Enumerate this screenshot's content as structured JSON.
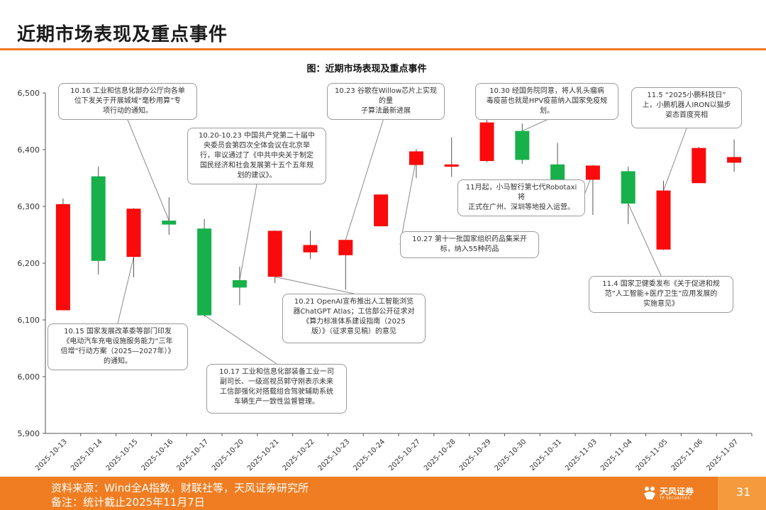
{
  "header": {
    "title": "近期市场表现及重点事件"
  },
  "footer": {
    "source": "资料来源：Wind全A指数，财联社等，天风证券研究所",
    "note": "备注：统计截止2025年11月7日",
    "brand_name": "天风证券",
    "brand_sub": "TF SECURITIES",
    "page_number": "31"
  },
  "colors": {
    "up": "#fa0a0a",
    "down": "#18b04a",
    "accent": "#ee7a22"
  },
  "chart_data": {
    "type": "candlestick",
    "title": "图：近期市场表现及重点事件",
    "xlabel": "",
    "ylabel": "",
    "ylim": [
      5900,
      6500
    ],
    "yticks": [
      5900,
      6000,
      6100,
      6200,
      6300,
      6400,
      6500
    ],
    "ytick_labels": [
      "5,900",
      "6,000",
      "6,100",
      "6,200",
      "6,300",
      "6,400",
      "6,500"
    ],
    "grid": false,
    "categories": [
      "2025-10-13",
      "2025-10-14",
      "2025-10-15",
      "2025-10-16",
      "2025-10-17",
      "2025-10-20",
      "2025-10-21",
      "2025-10-22",
      "2025-10-23",
      "2025-10-24",
      "2025-10-27",
      "2025-10-28",
      "2025-10-29",
      "2025-10-30",
      "2025-10-31",
      "2025-11-03",
      "2025-11-04",
      "2025-11-05",
      "2025-11-06",
      "2025-11-07"
    ],
    "candles": [
      {
        "open": 6117,
        "close": 6304,
        "high": 6314,
        "low": 6117
      },
      {
        "open": 6353,
        "close": 6204,
        "high": 6370,
        "low": 6180
      },
      {
        "open": 6211,
        "close": 6296,
        "high": 6297,
        "low": 6175
      },
      {
        "open": 6275,
        "close": 6268,
        "high": 6316,
        "low": 6250
      },
      {
        "open": 6261,
        "close": 6108,
        "high": 6278,
        "low": 6106
      },
      {
        "open": 6170,
        "close": 6157,
        "high": 6194,
        "low": 6126
      },
      {
        "open": 6176,
        "close": 6257,
        "high": 6258,
        "low": 6165
      },
      {
        "open": 6219,
        "close": 6232,
        "high": 6257,
        "low": 6207
      },
      {
        "open": 6214,
        "close": 6241,
        "high": 6241,
        "low": 6153
      },
      {
        "open": 6265,
        "close": 6321,
        "high": 6321,
        "low": 6265
      },
      {
        "open": 6373,
        "close": 6397,
        "high": 6401,
        "low": 6350
      },
      {
        "open": 6370,
        "close": 6374,
        "high": 6422,
        "low": 6352
      },
      {
        "open": 6380,
        "close": 6448,
        "high": 6462,
        "low": 6378
      },
      {
        "open": 6433,
        "close": 6382,
        "high": 6446,
        "low": 6375
      },
      {
        "open": 6374,
        "close": 6347,
        "high": 6412,
        "low": 6345
      },
      {
        "open": 6347,
        "close": 6372,
        "high": 6373,
        "low": 6285
      },
      {
        "open": 6362,
        "close": 6305,
        "high": 6370,
        "low": 6269
      },
      {
        "open": 6224,
        "close": 6328,
        "high": 6345,
        "low": 6223
      },
      {
        "open": 6341,
        "close": 6403,
        "high": 6405,
        "low": 6341
      },
      {
        "open": 6377,
        "close": 6387,
        "high": 6418,
        "low": 6361
      }
    ],
    "annotations": [
      {
        "date": "2025-10-16",
        "text": "10.16 工业和信息化部办公厅向各单\n位下发关于开展城域“毫秒用算”专\n项行动的通知。"
      },
      {
        "date": "2025-10-20",
        "text": "10.20-10.23 中国共产党第二十届中\n央委员会第四次全体会议在北京举\n行，审议通过了《中共中央关于制定\n国民经济和社会发展第十五个五年规\n划的建议》。"
      },
      {
        "date": "2025-10-23",
        "text": "10.23 谷歌在Willow芯片上实现的量\n子算法最新进展"
      },
      {
        "date": "2025-10-30",
        "text": "10.30 经国务院同意，将人乳头瘤病\n毒疫苗也就是HPV疫苗纳入国家免疫规\n划。"
      },
      {
        "date": "2025-11-05",
        "text": "11.5 “2025小鹏科技日”\n上，小鹏机器人IRON以猫步\n姿态首度亮相"
      },
      {
        "date": "2025-11-03",
        "text": "11月起，小马智行第七代Robotaxi将\n正式在广州、深圳等地投入运营。"
      },
      {
        "date": "2025-10-27",
        "text": "10.27 第十一批国家组织药品集采开\n标，纳入55种药品"
      },
      {
        "date": "2025-10-21",
        "text": "10.21 OpenAI宣布推出人工智能浏览\n器ChatGPT Atlas；工信部公开征求对\n《算力标准体系建设指南（2025\n版）》（征求意见稿）的意见"
      },
      {
        "date": "2025-11-04",
        "text": "11.4 国家卫健委发布《关于促进和规\n范“人工智能+医疗卫生”应用发展的\n实施意见》"
      },
      {
        "date": "2025-10-15",
        "text": "10.15 国家发展改革委等部门印发\n《电动汽车充电设施服务能力“三年\n倍增”行动方案（2025—2027年）》\n的通知。"
      },
      {
        "date": "2025-10-17",
        "text": "10.17 工业和信息化部装备工业一司\n副司长、一级巡视员郭守刚表示未来\n工信部强化对搭载组合驾驶辅助系统\n车辆生产一致性监督管理。"
      }
    ]
  }
}
